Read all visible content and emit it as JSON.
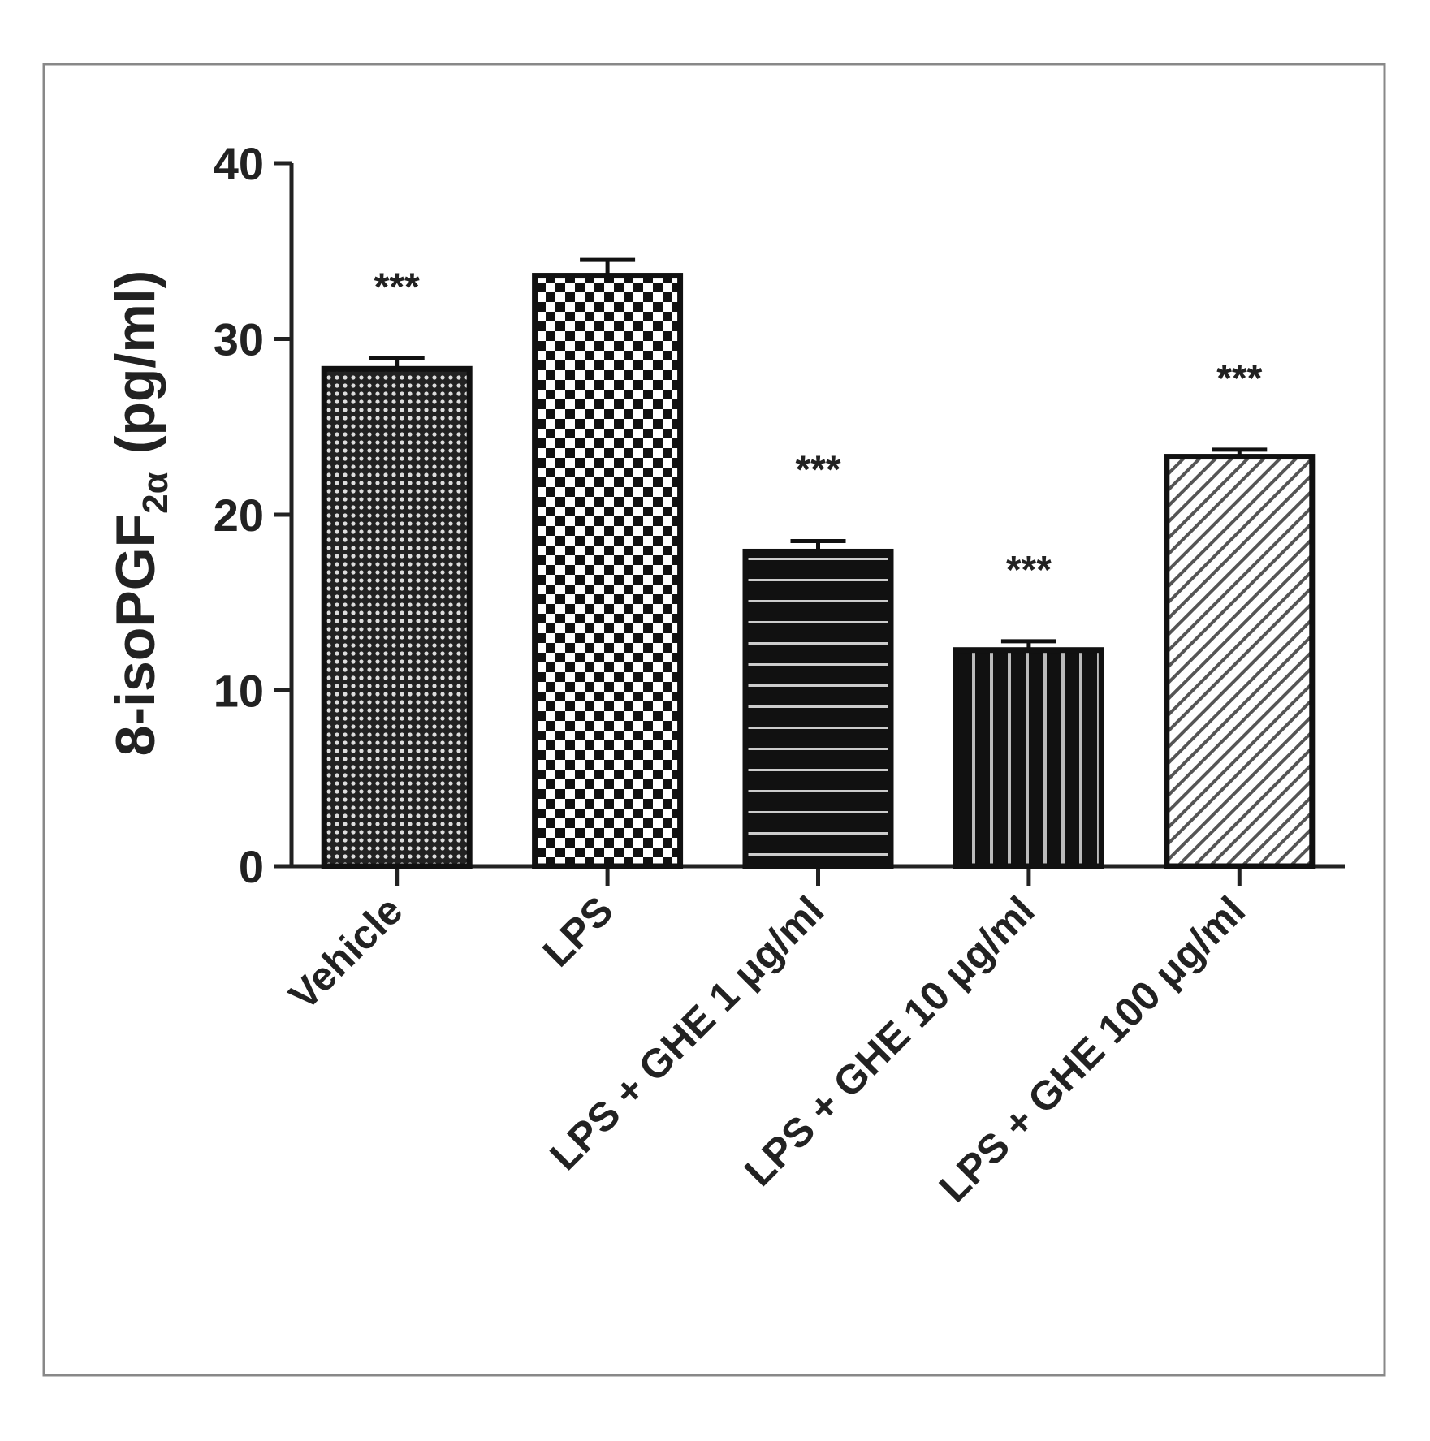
{
  "chart_data": {
    "type": "bar",
    "y_label": {
      "main": "8-isoPGF",
      "sub": "2α",
      "unit": "(pg/ml)"
    },
    "categories": [
      "Vehicle",
      "LPS",
      "LPS + GHE 1 μg/ml",
      "LPS + GHE 10 μg/ml",
      "LPS + GHE 100 μg/ml"
    ],
    "values": [
      28.3,
      33.6,
      17.9,
      12.3,
      23.3
    ],
    "errors": [
      0.6,
      0.9,
      0.6,
      0.5,
      0.4
    ],
    "annotations": [
      "***",
      null,
      "***",
      "***",
      "***"
    ],
    "patterns": [
      "dots",
      "checker",
      "hstripes",
      "vstripes",
      "diagonal"
    ],
    "color": "#111111",
    "ylim": [
      0,
      40
    ],
    "yticks": [
      0,
      10,
      20,
      30,
      40
    ]
  }
}
